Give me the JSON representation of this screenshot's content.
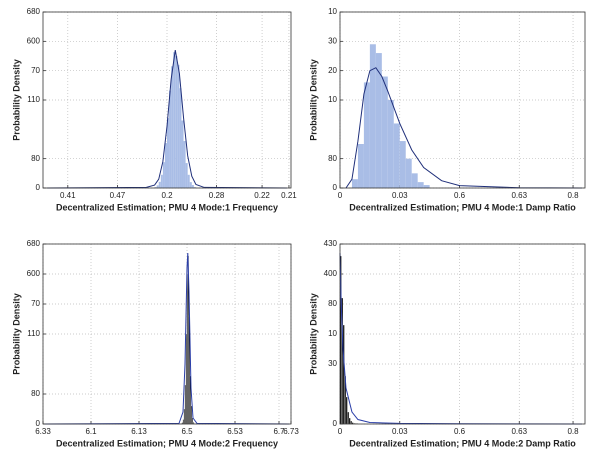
{
  "chart_data": [
    {
      "type": "histogram",
      "xlabel": "Decentralized Estimation; PMU 4 Mode:1 Frequency",
      "ylabel": "Probability Density",
      "xlim": [
        0,
        6
      ],
      "ylim": [
        0,
        6
      ],
      "xticks": [
        {
          "value": 0.6,
          "label": "0.41"
        },
        {
          "value": 1.8,
          "label": "0.47"
        },
        {
          "value": 3,
          "label": "0.2"
        },
        {
          "value": 4.2,
          "label": "0.28"
        },
        {
          "value": 5.3,
          "label": "0.22"
        },
        {
          "value": 5.95,
          "label": "0.21"
        }
      ],
      "yticks": [
        0,
        {
          "value": 1,
          "label": "80"
        },
        {
          "value": 3,
          "label": "110"
        },
        {
          "value": 4,
          "label": "70"
        },
        {
          "value": 5,
          "label": "600"
        },
        {
          "value": 6,
          "label": "680"
        }
      ],
      "grid": true,
      "color": "#a9bde6",
      "curve_color": "#1f2f7a",
      "bins": [
        2.7,
        2.75,
        2.8,
        2.85,
        2.9,
        2.95,
        3.0,
        3.05,
        3.1,
        3.15,
        3.2,
        3.25,
        3.3,
        3.35,
        3.4,
        3.45,
        3.5,
        3.55,
        3.6,
        3.65,
        3.7
      ],
      "counts": [
        0.03,
        0.09,
        0.21,
        0.45,
        0.88,
        1.53,
        2.38,
        3.32,
        4.15,
        4.63,
        4.5,
        4.2,
        3.4,
        2.3,
        1.6,
        0.85,
        0.45,
        0.2,
        0.1,
        0.03
      ],
      "curve": {
        "x": [
          0.1,
          2.5,
          2.7,
          2.8,
          2.9,
          3.0,
          3.1,
          3.2,
          3.3,
          3.4,
          3.5,
          3.6,
          3.7,
          3.9,
          5.9
        ],
        "y": [
          0,
          0.02,
          0.1,
          0.3,
          0.9,
          2.1,
          3.7,
          4.7,
          3.9,
          2.4,
          1.1,
          0.4,
          0.12,
          0.02,
          0
        ]
      }
    },
    {
      "type": "histogram",
      "xlabel": "Decentralized Estimation; PMU 4 Mode:1 Damp Ratio",
      "ylabel": "Probability Density",
      "xlim": [
        0,
        4.1
      ],
      "ylim": [
        0,
        6
      ],
      "xticks": [
        0,
        {
          "value": 1,
          "label": "0.03"
        },
        {
          "value": 2,
          "label": "0.6"
        },
        {
          "value": 3,
          "label": "0.63"
        },
        {
          "value": 3.9,
          "label": "0.8"
        }
      ],
      "yticks": [
        0,
        {
          "value": 1,
          "label": "80"
        },
        {
          "value": 3,
          "label": "10"
        },
        {
          "value": 4,
          "label": "20"
        },
        {
          "value": 5,
          "label": "30"
        },
        {
          "value": 6,
          "label": "10"
        }
      ],
      "grid": true,
      "color": "#a9bde6",
      "curve_color": "#1f2f7a",
      "bins": [
        0.2,
        0.3,
        0.4,
        0.5,
        0.6,
        0.7,
        0.8,
        0.9,
        1.0,
        1.1,
        1.2,
        1.3,
        1.4,
        1.5
      ],
      "counts": [
        0.3,
        1.5,
        3.6,
        4.9,
        4.6,
        3.8,
        3.0,
        2.2,
        1.6,
        1.0,
        0.5,
        0.2,
        0.1
      ],
      "curve": {
        "x": [
          0.1,
          0.2,
          0.3,
          0.4,
          0.5,
          0.6,
          0.7,
          0.8,
          1.0,
          1.2,
          1.4,
          1.7,
          2.0,
          3.0,
          4.05
        ],
        "y": [
          0,
          0.3,
          1.6,
          3.2,
          4.0,
          4.1,
          3.8,
          3.3,
          2.2,
          1.3,
          0.7,
          0.25,
          0.08,
          0.01,
          0
        ]
      }
    },
    {
      "type": "histogram",
      "xlabel": "Decentralized Estimation; PMU 4 Mode:2 Frequency",
      "ylabel": "Probability Density",
      "xlim": [
        0,
        6.2
      ],
      "ylim": [
        0,
        6
      ],
      "xticks": [
        {
          "value": 0,
          "label": "6.33"
        },
        {
          "value": 1.2,
          "label": "6.1"
        },
        {
          "value": 2.4,
          "label": "6.13"
        },
        {
          "value": 3.6,
          "label": "6.5"
        },
        {
          "value": 4.8,
          "label": "6.53"
        },
        {
          "value": 5.9,
          "label": "6.7"
        },
        {
          "value": 6.2,
          "label": "6.73"
        }
      ],
      "yticks": [
        0,
        {
          "value": 1,
          "label": "80"
        },
        {
          "value": 3,
          "label": "110"
        },
        {
          "value": 4,
          "label": "70"
        },
        {
          "value": 5,
          "label": "600"
        },
        {
          "value": 6,
          "label": "680"
        }
      ],
      "grid": true,
      "color": "#000000",
      "curve_color": "#2a3ea8",
      "bins": [
        3.42,
        3.445,
        3.47,
        3.495,
        3.52,
        3.545,
        3.57,
        3.595,
        3.62,
        3.645,
        3.67,
        3.695,
        3.72,
        3.745,
        3.77,
        3.795,
        3.82
      ],
      "counts": [
        0.01,
        0.02,
        0.05,
        0.15,
        0.5,
        1.3,
        3.0,
        5.0,
        5.6,
        3.6,
        1.6,
        0.6,
        0.2,
        0.06,
        0.02,
        0.01
      ],
      "curve": {
        "x": [
          0.05,
          3.4,
          3.5,
          3.55,
          3.6,
          3.62,
          3.65,
          3.7,
          3.75,
          3.85,
          6.15
        ],
        "y": [
          0,
          0.02,
          0.4,
          2.0,
          5.2,
          5.7,
          4.4,
          1.2,
          0.2,
          0.02,
          0
        ]
      }
    },
    {
      "type": "histogram",
      "xlabel": "Decentralized Estimation; PMU 4 Mode:2 Damp Ratio",
      "ylabel": "Probability Density",
      "xlim": [
        0,
        4.1
      ],
      "ylim": [
        0,
        6
      ],
      "xticks": [
        0,
        {
          "value": 1,
          "label": "0.03"
        },
        {
          "value": 2,
          "label": "0.6"
        },
        {
          "value": 3,
          "label": "0.63"
        },
        {
          "value": 3.9,
          "label": "0.8"
        }
      ],
      "yticks": [
        0,
        {
          "value": 2,
          "label": "30"
        },
        {
          "value": 3,
          "label": "10"
        },
        {
          "value": 4,
          "label": "80"
        },
        {
          "value": 5,
          "label": "400"
        },
        {
          "value": 6,
          "label": "430"
        }
      ],
      "grid": true,
      "color": "#000000",
      "curve_color": "#2a3ea8",
      "bins": [
        0,
        0.025,
        0.05,
        0.075,
        0.1,
        0.125,
        0.15,
        0.175,
        0.2,
        0.225,
        0.25,
        0.275,
        0.3,
        0.325,
        0.35,
        0.375,
        0.4
      ],
      "counts": [
        5.6,
        4.2,
        3.3,
        1.6,
        0.9,
        0.4,
        0.2,
        0.1,
        0.05,
        0.03,
        0.02,
        0.02,
        0.01,
        0.01,
        0.01,
        0.01
      ],
      "curve": {
        "x": [
          0,
          0.02,
          0.05,
          0.1,
          0.2,
          0.3,
          0.5,
          1.0,
          2.0,
          4.05
        ],
        "y": [
          5.7,
          4.0,
          2.5,
          1.2,
          0.4,
          0.15,
          0.05,
          0.02,
          0.01,
          0
        ]
      }
    }
  ]
}
